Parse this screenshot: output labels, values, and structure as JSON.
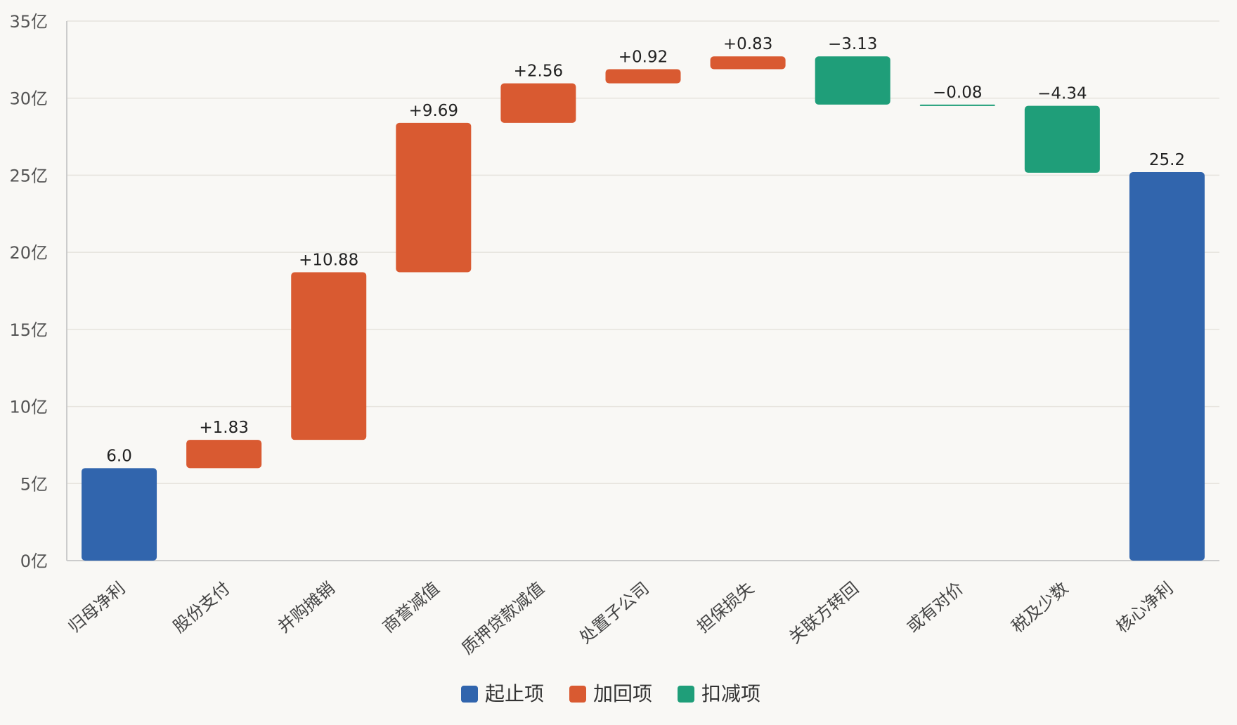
{
  "chart_data": {
    "type": "bar",
    "subtype": "waterfall",
    "title": "",
    "xlabel": "",
    "ylabel": "",
    "unit_suffix": "亿",
    "ylim": [
      0,
      35
    ],
    "yticks": [
      0,
      5,
      10,
      15,
      20,
      25,
      30,
      35
    ],
    "grid": true,
    "legend_position": "bottom-center",
    "colors": {
      "start_end": "#3165ad",
      "add": "#d95a31",
      "subtract": "#1f9e79",
      "grid": "#e6e3dd",
      "axis": "#cccccc"
    },
    "categories": [
      "归母净利",
      "股份支付",
      "并购摊销",
      "商誉减值",
      "质押贷款减值",
      "处置子公司",
      "担保损失",
      "关联方转回",
      "或有对价",
      "税及少数",
      "核心净利"
    ],
    "steps": [
      {
        "name": "归母净利",
        "kind": "start_end",
        "value": 6.0,
        "label": "6.0"
      },
      {
        "name": "股份支付",
        "kind": "add",
        "value": 1.83,
        "label": "+1.83"
      },
      {
        "name": "并购摊销",
        "kind": "add",
        "value": 10.88,
        "label": "+10.88"
      },
      {
        "name": "商誉减值",
        "kind": "add",
        "value": 9.69,
        "label": "+9.69"
      },
      {
        "name": "质押贷款减值",
        "kind": "add",
        "value": 2.56,
        "label": "+2.56"
      },
      {
        "name": "处置子公司",
        "kind": "add",
        "value": 0.92,
        "label": "+0.92"
      },
      {
        "name": "担保损失",
        "kind": "add",
        "value": 0.83,
        "label": "+0.83"
      },
      {
        "name": "关联方转回",
        "kind": "subtract",
        "value": -3.13,
        "label": "−3.13"
      },
      {
        "name": "或有对价",
        "kind": "subtract",
        "value": -0.08,
        "label": "−0.08"
      },
      {
        "name": "税及少数",
        "kind": "subtract",
        "value": -4.34,
        "label": "−4.34"
      },
      {
        "name": "核心净利",
        "kind": "start_end",
        "value": 25.2,
        "label": "25.2"
      }
    ],
    "legend": [
      {
        "key": "start_end",
        "label": "起止项"
      },
      {
        "key": "add",
        "label": "加回项"
      },
      {
        "key": "subtract",
        "label": "扣减项"
      }
    ]
  }
}
